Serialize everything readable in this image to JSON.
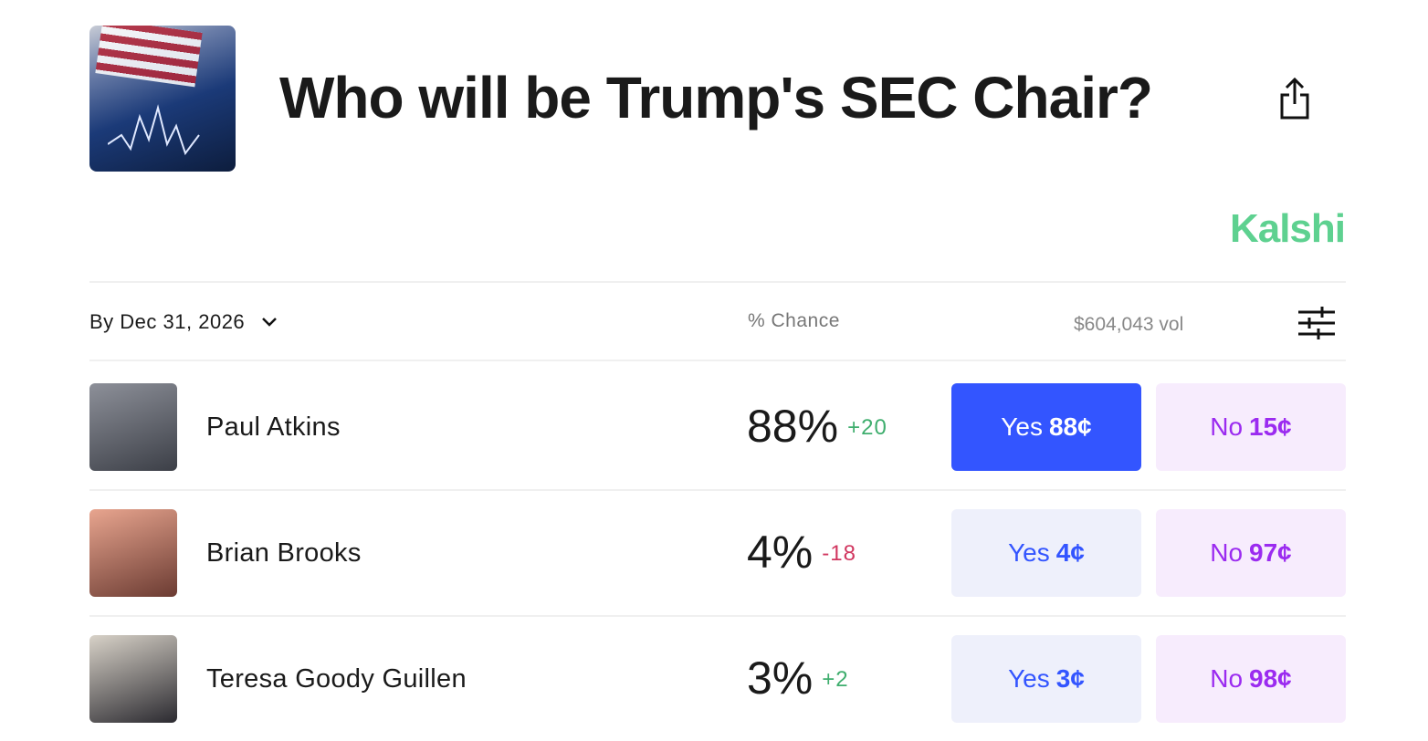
{
  "header": {
    "title": "Who will be Trump's SEC Chair?",
    "brand": "Kalshi"
  },
  "toolbar": {
    "date_filter": "By Dec 31, 2026",
    "chance_header": "% Chance",
    "volume": "$604,043 vol"
  },
  "rows": [
    {
      "name": "Paul Atkins",
      "chance": "88%",
      "change": "+20",
      "change_dir": "up",
      "yes_label": "Yes",
      "yes_price": "88¢",
      "no_label": "No",
      "no_price": "15¢",
      "selected": true
    },
    {
      "name": "Brian Brooks",
      "chance": "4%",
      "change": "-18",
      "change_dir": "down",
      "yes_label": "Yes",
      "yes_price": "4¢",
      "no_label": "No",
      "no_price": "97¢",
      "selected": false
    },
    {
      "name": "Teresa Goody Guillen",
      "chance": "3%",
      "change": "+2",
      "change_dir": "up",
      "yes_label": "Yes",
      "yes_price": "3¢",
      "no_label": "No",
      "no_price": "98¢",
      "selected": false
    }
  ]
}
